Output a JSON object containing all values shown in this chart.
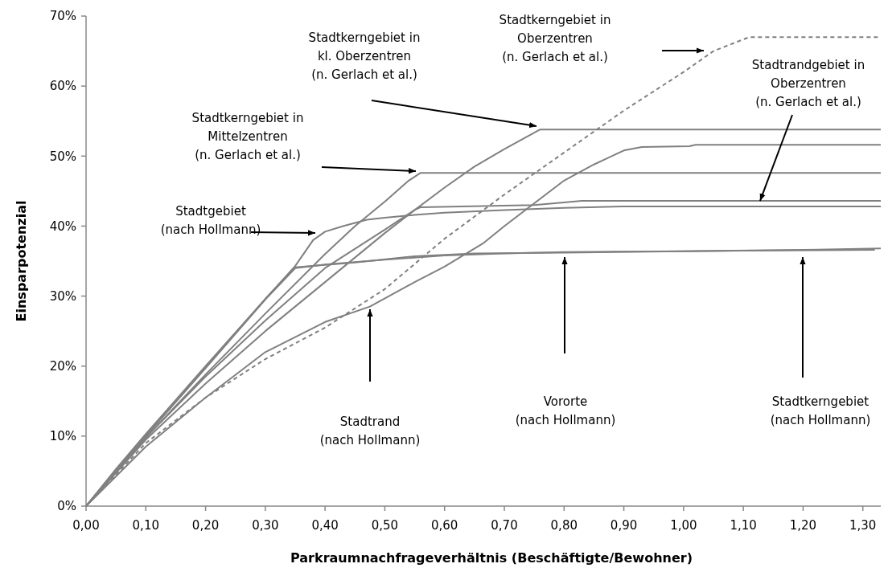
{
  "chart_data": {
    "type": "line",
    "xlabel": "Parkraumnachfrageverhältnis (Beschäftigte/Bewohner)",
    "ylabel": "Einsparpotenzial",
    "xlim": [
      0,
      1.33
    ],
    "ylim": [
      0,
      70
    ],
    "xticks": [
      {
        "value": 0,
        "label": "0,00"
      },
      {
        "value": 0.1,
        "label": "0,10"
      },
      {
        "value": 0.2,
        "label": "0,20"
      },
      {
        "value": 0.3,
        "label": "0,30"
      },
      {
        "value": 0.4,
        "label": "0,40"
      },
      {
        "value": 0.5,
        "label": "0,50"
      },
      {
        "value": 0.6,
        "label": "0,60"
      },
      {
        "value": 0.7,
        "label": "0,70"
      },
      {
        "value": 0.8,
        "label": "0,80"
      },
      {
        "value": 0.9,
        "label": "0,90"
      },
      {
        "value": 1.0,
        "label": "1,00"
      },
      {
        "value": 1.1,
        "label": "1,10"
      },
      {
        "value": 1.2,
        "label": "1,20"
      },
      {
        "value": 1.3,
        "label": "1,30"
      }
    ],
    "yticks": [
      {
        "value": 0,
        "label": "0%"
      },
      {
        "value": 10,
        "label": "10%"
      },
      {
        "value": 20,
        "label": "20%"
      },
      {
        "value": 30,
        "label": "30%"
      },
      {
        "value": 40,
        "label": "40%"
      },
      {
        "value": 50,
        "label": "50%"
      },
      {
        "value": 60,
        "label": "60%"
      },
      {
        "value": 70,
        "label": "70%"
      }
    ],
    "grid": false,
    "series": [
      {
        "color": "#808080",
        "line_style": "solid",
        "x": [
          0,
          0.05,
          0.1,
          0.2,
          0.3,
          0.35,
          0.38,
          0.4,
          0.43,
          0.47,
          0.5,
          0.55,
          0.6,
          0.7,
          0.8,
          0.9,
          1.33
        ],
        "values": [
          0,
          5.3,
          10.3,
          20,
          29.6,
          34.3,
          38,
          39.2,
          40,
          40.9,
          41.2,
          41.6,
          41.9,
          42.3,
          42.6,
          42.8,
          42.8
        ]
      },
      {
        "color": "#808080",
        "line_style": "solid",
        "x": [
          0,
          0.1,
          0.2,
          0.3,
          0.4,
          0.475,
          0.55,
          0.6,
          0.664,
          0.7,
          0.8,
          0.85,
          0.9,
          0.93,
          1.01,
          1.02,
          1.33
        ],
        "values": [
          0,
          8.5,
          15.5,
          22,
          26.3,
          28.5,
          32,
          34.2,
          37.5,
          40,
          46.5,
          48.8,
          50.8,
          51.3,
          51.4,
          51.6,
          51.6
        ]
      },
      {
        "color": "#808080",
        "line_style": "solid",
        "x": [
          0.01,
          0.1,
          0.2,
          0.3,
          0.35,
          0.4,
          0.5,
          0.6,
          0.7,
          0.8,
          1.0,
          1.1,
          1.32
        ],
        "values": [
          1,
          10,
          19.7,
          29.5,
          34,
          34.5,
          35.2,
          35.8,
          36.1,
          36.3,
          36.4,
          36.5,
          36.6
        ]
      },
      {
        "color": "#808080",
        "line_style": "solid",
        "x": [
          0,
          0.1,
          0.2,
          0.3,
          0.35,
          0.45,
          0.55,
          0.65,
          0.8,
          1.0,
          1.2,
          1.33
        ],
        "values": [
          0,
          10.1,
          19.8,
          29.6,
          34.1,
          34.8,
          35.7,
          36.1,
          36.2,
          36.4,
          36.6,
          36.8
        ]
      },
      {
        "color": "#808080",
        "line_style": "solid",
        "x": [
          0,
          0.1,
          0.2,
          0.3,
          0.4,
          0.45,
          0.5,
          0.54,
          0.56,
          1.33
        ],
        "values": [
          0,
          9.8,
          18.8,
          27.5,
          36,
          40,
          43.5,
          46.5,
          47.6,
          47.6
        ]
      },
      {
        "color": "#808080",
        "line_style": "solid",
        "x": [
          0,
          0.1,
          0.2,
          0.3,
          0.4,
          0.5,
          0.55,
          0.6,
          0.65,
          0.7,
          0.76,
          1.33
        ],
        "values": [
          0,
          9.5,
          17.5,
          25,
          32,
          39,
          42.3,
          45.5,
          48.5,
          51,
          53.8,
          53.8
        ]
      },
      {
        "color": "#808080",
        "line_style": "dashed",
        "x": [
          0,
          0.1,
          0.2,
          0.3,
          0.4,
          0.5,
          0.6,
          0.7,
          0.8,
          0.9,
          1.0,
          1.05,
          1.11,
          1.33
        ],
        "values": [
          0,
          9,
          15.5,
          21,
          25.5,
          31,
          38.2,
          44.5,
          50.5,
          56.5,
          62,
          65,
          67,
          67
        ]
      },
      {
        "color": "#808080",
        "line_style": "solid",
        "x": [
          0,
          0.1,
          0.2,
          0.3,
          0.4,
          0.5,
          0.55,
          0.56,
          0.75,
          0.83,
          1.33
        ],
        "values": [
          0,
          9.8,
          18.5,
          26.5,
          34,
          39.5,
          42.3,
          42.7,
          43,
          43.6,
          43.6
        ]
      }
    ],
    "annotations": [
      "Stadtgebiet\n(nach Hollmann)",
      "Stadtkerngebiet in\nMittelzentren\n(n. Gerlach et al.)",
      "Stadtkerngebiet in\nkl. Oberzentren\n(n. Gerlach et al.)",
      "Stadtkerngebiet in\nOberzentren\n(n. Gerlach et al.)",
      {
        "text": "Stadtrandgebiet in\nOberzentren\n(n. Gerlach et al.)",
        "x": 1.128,
        "y": 43.6
      },
      "Stadtkerngebiet\n(nach Hollmann)",
      "Vororte\n(nach Hollmann)",
      "Stadtrand\n(nach Hollmann)"
    ]
  }
}
